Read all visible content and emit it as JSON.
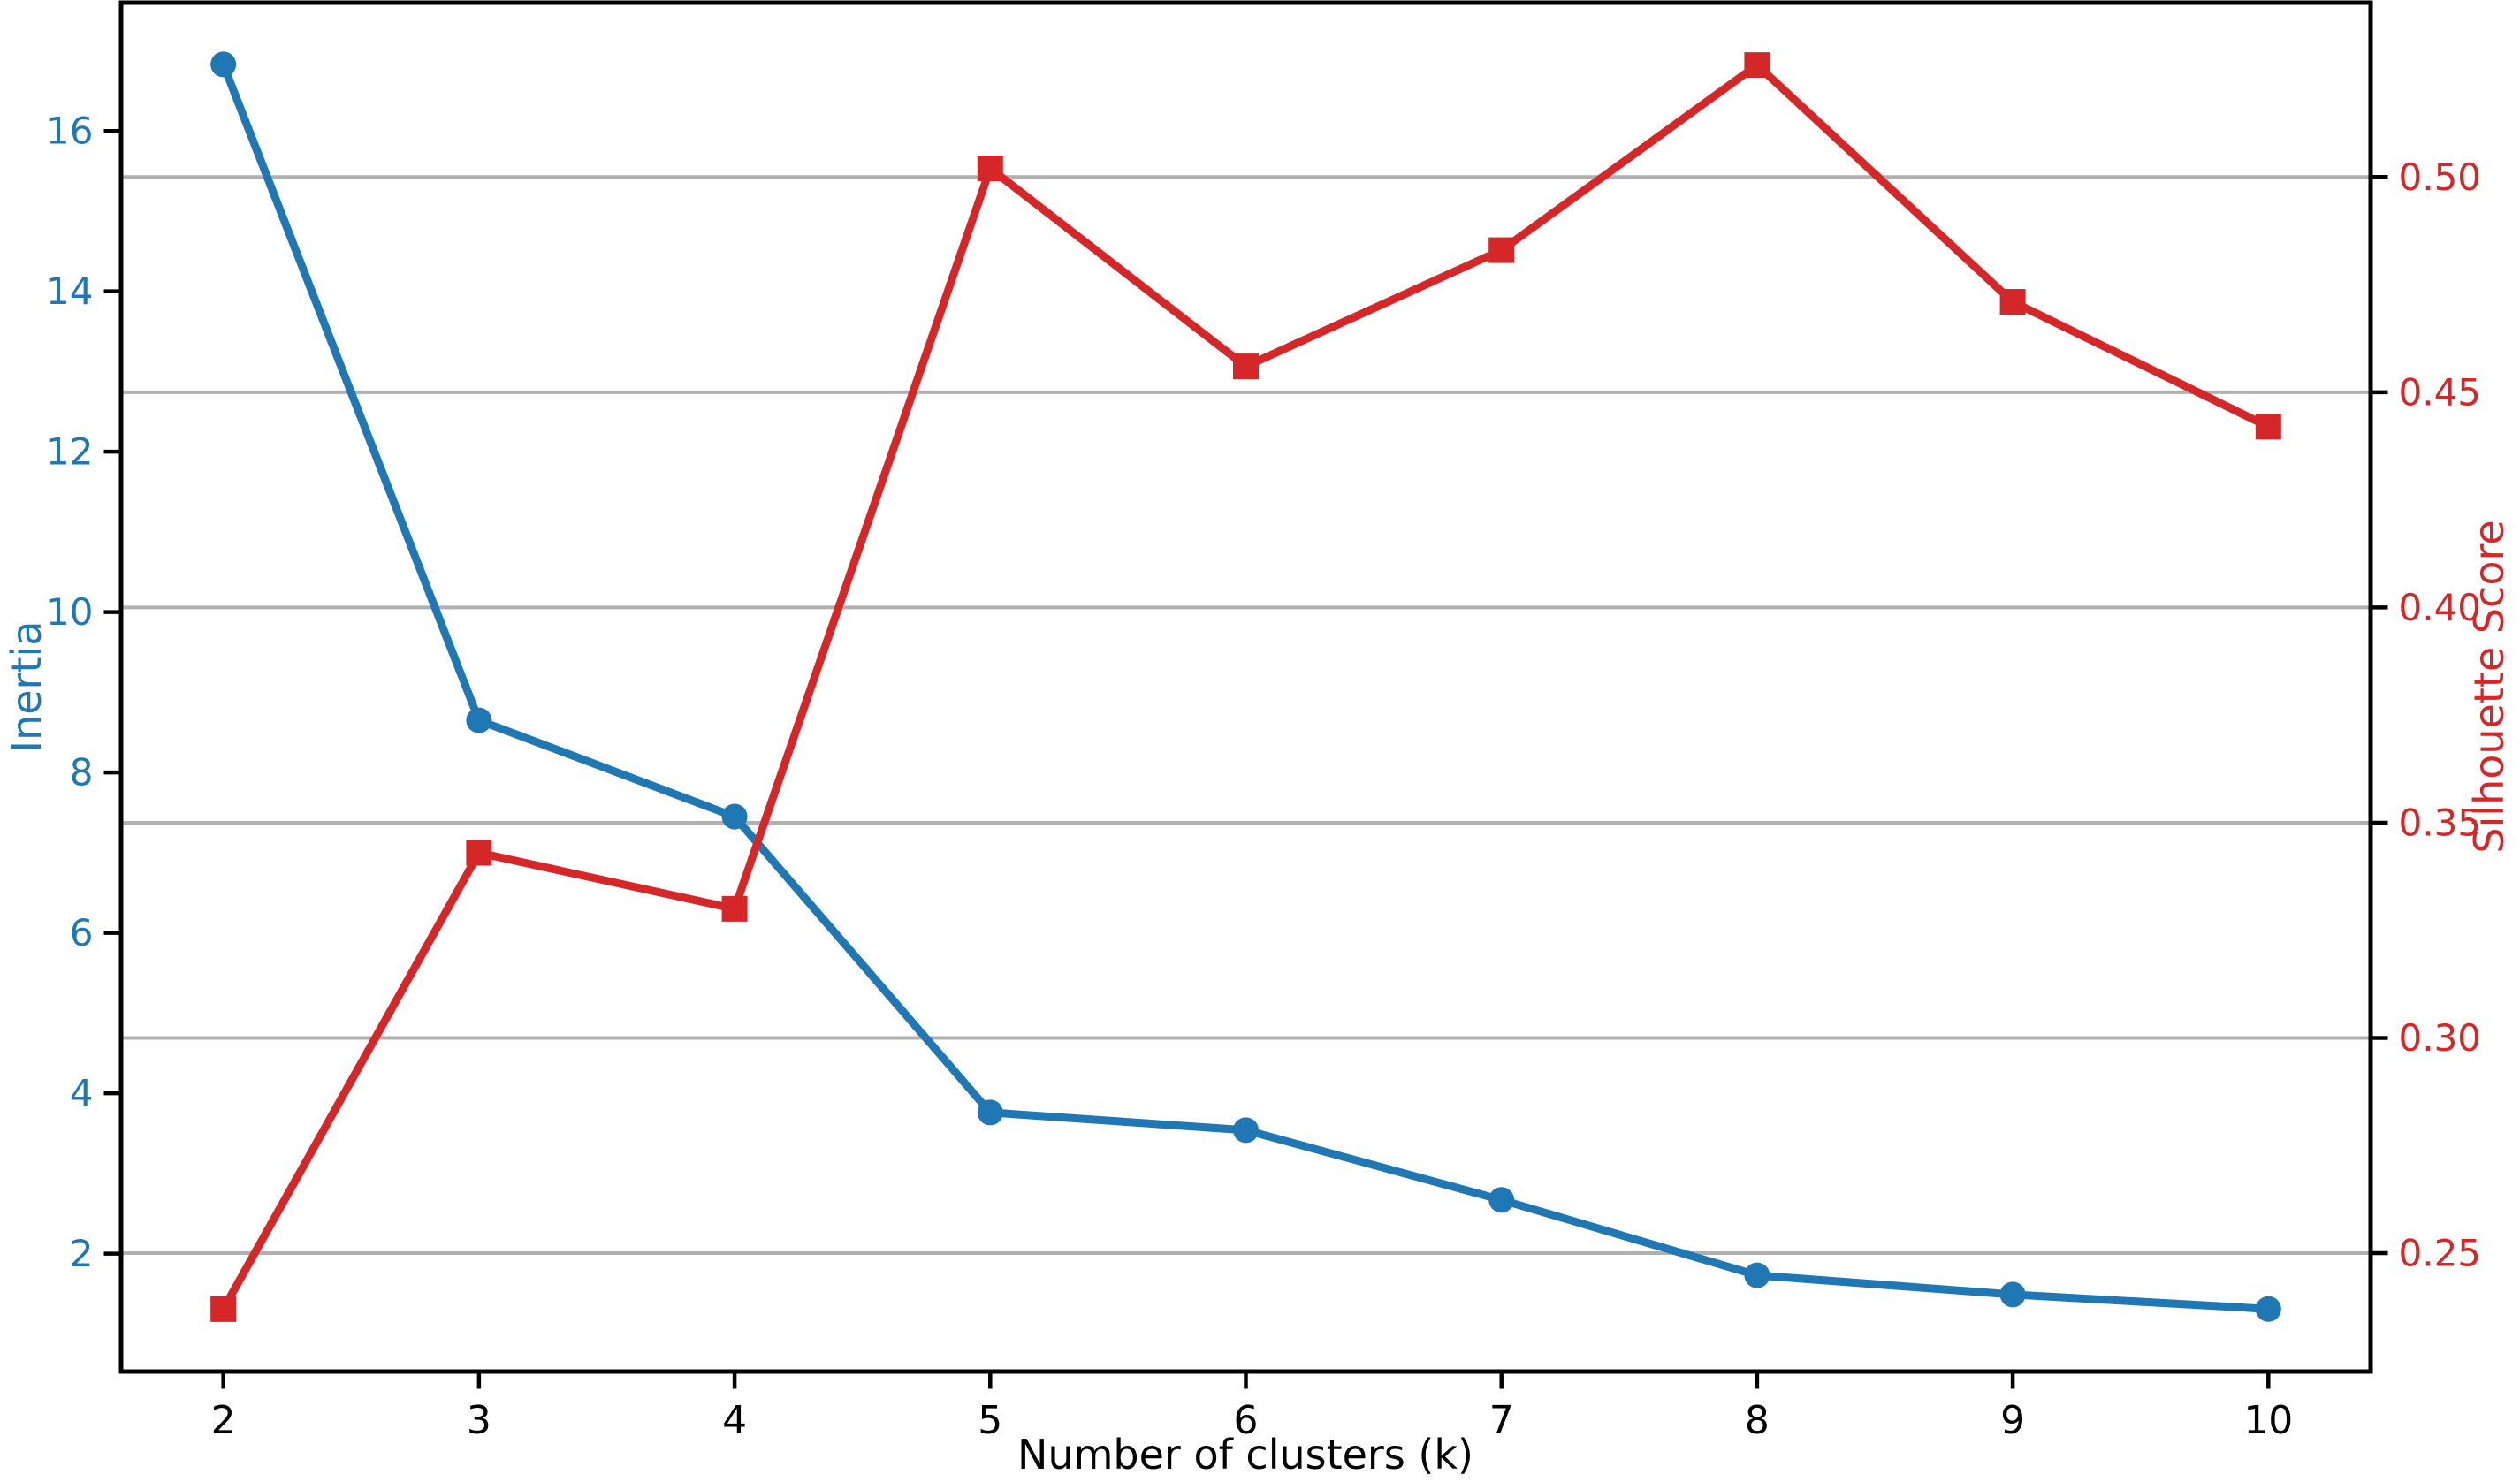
{
  "figure": {
    "background": "#ffffff",
    "title": ""
  },
  "chart_data": {
    "type": "line",
    "title": "",
    "xlabel": "Number of clusters (k)",
    "x": [
      2,
      3,
      4,
      5,
      6,
      7,
      8,
      9,
      10
    ],
    "x_tick_labels": [
      "2",
      "3",
      "4",
      "5",
      "6",
      "7",
      "8",
      "9",
      "10"
    ],
    "xlim": [
      1.6,
      10.4
    ],
    "grid": "horizontal gridlines aligned to right-axis ticks",
    "grid_color": "#b0b0b0",
    "spine_color": "#000000",
    "tick_color": "#000000",
    "axes": {
      "left": {
        "label": "Inertia",
        "color": "#1f77b4",
        "ticks": [
          2,
          4,
          6,
          8,
          10,
          12,
          14,
          16
        ],
        "tick_labels": [
          "2",
          "4",
          "6",
          "8",
          "10",
          "12",
          "14",
          "16"
        ],
        "lim": [
          0.53,
          17.6
        ]
      },
      "right": {
        "label": "Silhouette Score",
        "color": "#d62728",
        "ticks": [
          0.25,
          0.3,
          0.35,
          0.4,
          0.45,
          0.5
        ],
        "tick_labels": [
          "0.25",
          "0.30",
          "0.35",
          "0.40",
          "0.45",
          "0.50"
        ],
        "lim": [
          0.2225,
          0.5405
        ]
      }
    },
    "series": [
      {
        "name": "Inertia",
        "axis": "left",
        "color": "#1f77b4",
        "marker": "circle",
        "values": [
          16.83,
          8.65,
          7.45,
          3.76,
          3.54,
          2.67,
          1.73,
          1.49,
          1.31
        ]
      },
      {
        "name": "Silhouette Score",
        "axis": "right",
        "color": "#d62728",
        "marker": "square",
        "values": [
          0.237,
          0.343,
          0.33,
          0.502,
          0.456,
          0.483,
          0.526,
          0.471,
          0.442
        ]
      }
    ],
    "legend": "none"
  }
}
